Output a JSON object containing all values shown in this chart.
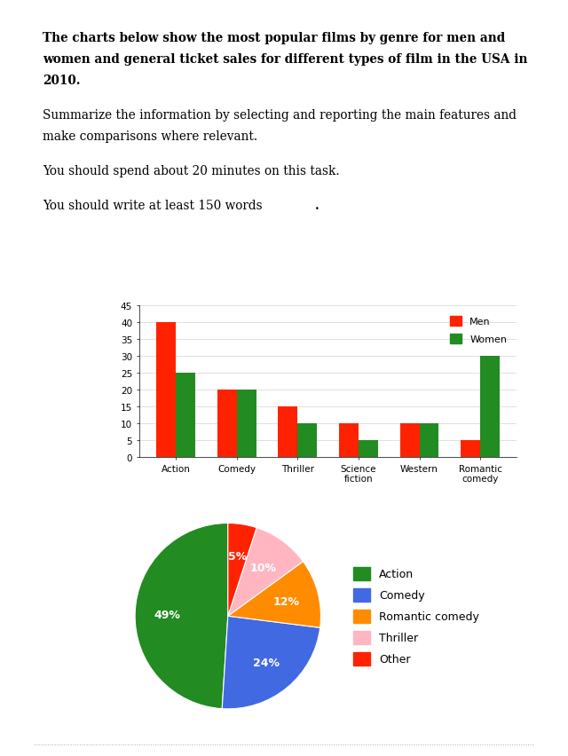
{
  "line1": "The charts below show the most popular films by genre for men and",
  "line2": "women and general ticket sales for different types of film in the USA in",
  "line3": "2010.",
  "line4": "Summarize the information by selecting and reporting the main features and",
  "line5": "make comparisons where relevant.",
  "line6": "You should spend about 20 minutes on this task.",
  "line7a": "You should write at least 150 words",
  "line7b": ".",
  "bar_categories": [
    "Action",
    "Comedy",
    "Thriller",
    "Science\nfiction",
    "Western",
    "Romantic\ncomedy"
  ],
  "men_values": [
    40,
    20,
    15,
    10,
    10,
    5
  ],
  "women_values": [
    25,
    20,
    10,
    5,
    10,
    30
  ],
  "men_color": "#ff2200",
  "women_color": "#228B22",
  "bar_ylim": [
    0,
    45
  ],
  "bar_yticks": [
    0,
    5,
    10,
    15,
    20,
    25,
    30,
    35,
    40,
    45
  ],
  "bar_border_color": "#3333aa",
  "pie_labels": [
    "Action",
    "Comedy",
    "Romantic comedy",
    "Thriller",
    "Other"
  ],
  "pie_values": [
    49,
    24,
    12,
    10,
    5
  ],
  "pie_colors": [
    "#228B22",
    "#4169E1",
    "#FF8C00",
    "#FFB6C1",
    "#ff2200"
  ],
  "pie_border_color": "#cc4444",
  "background_color": "#ffffff",
  "dotted_line_color": "#aaaaaa"
}
